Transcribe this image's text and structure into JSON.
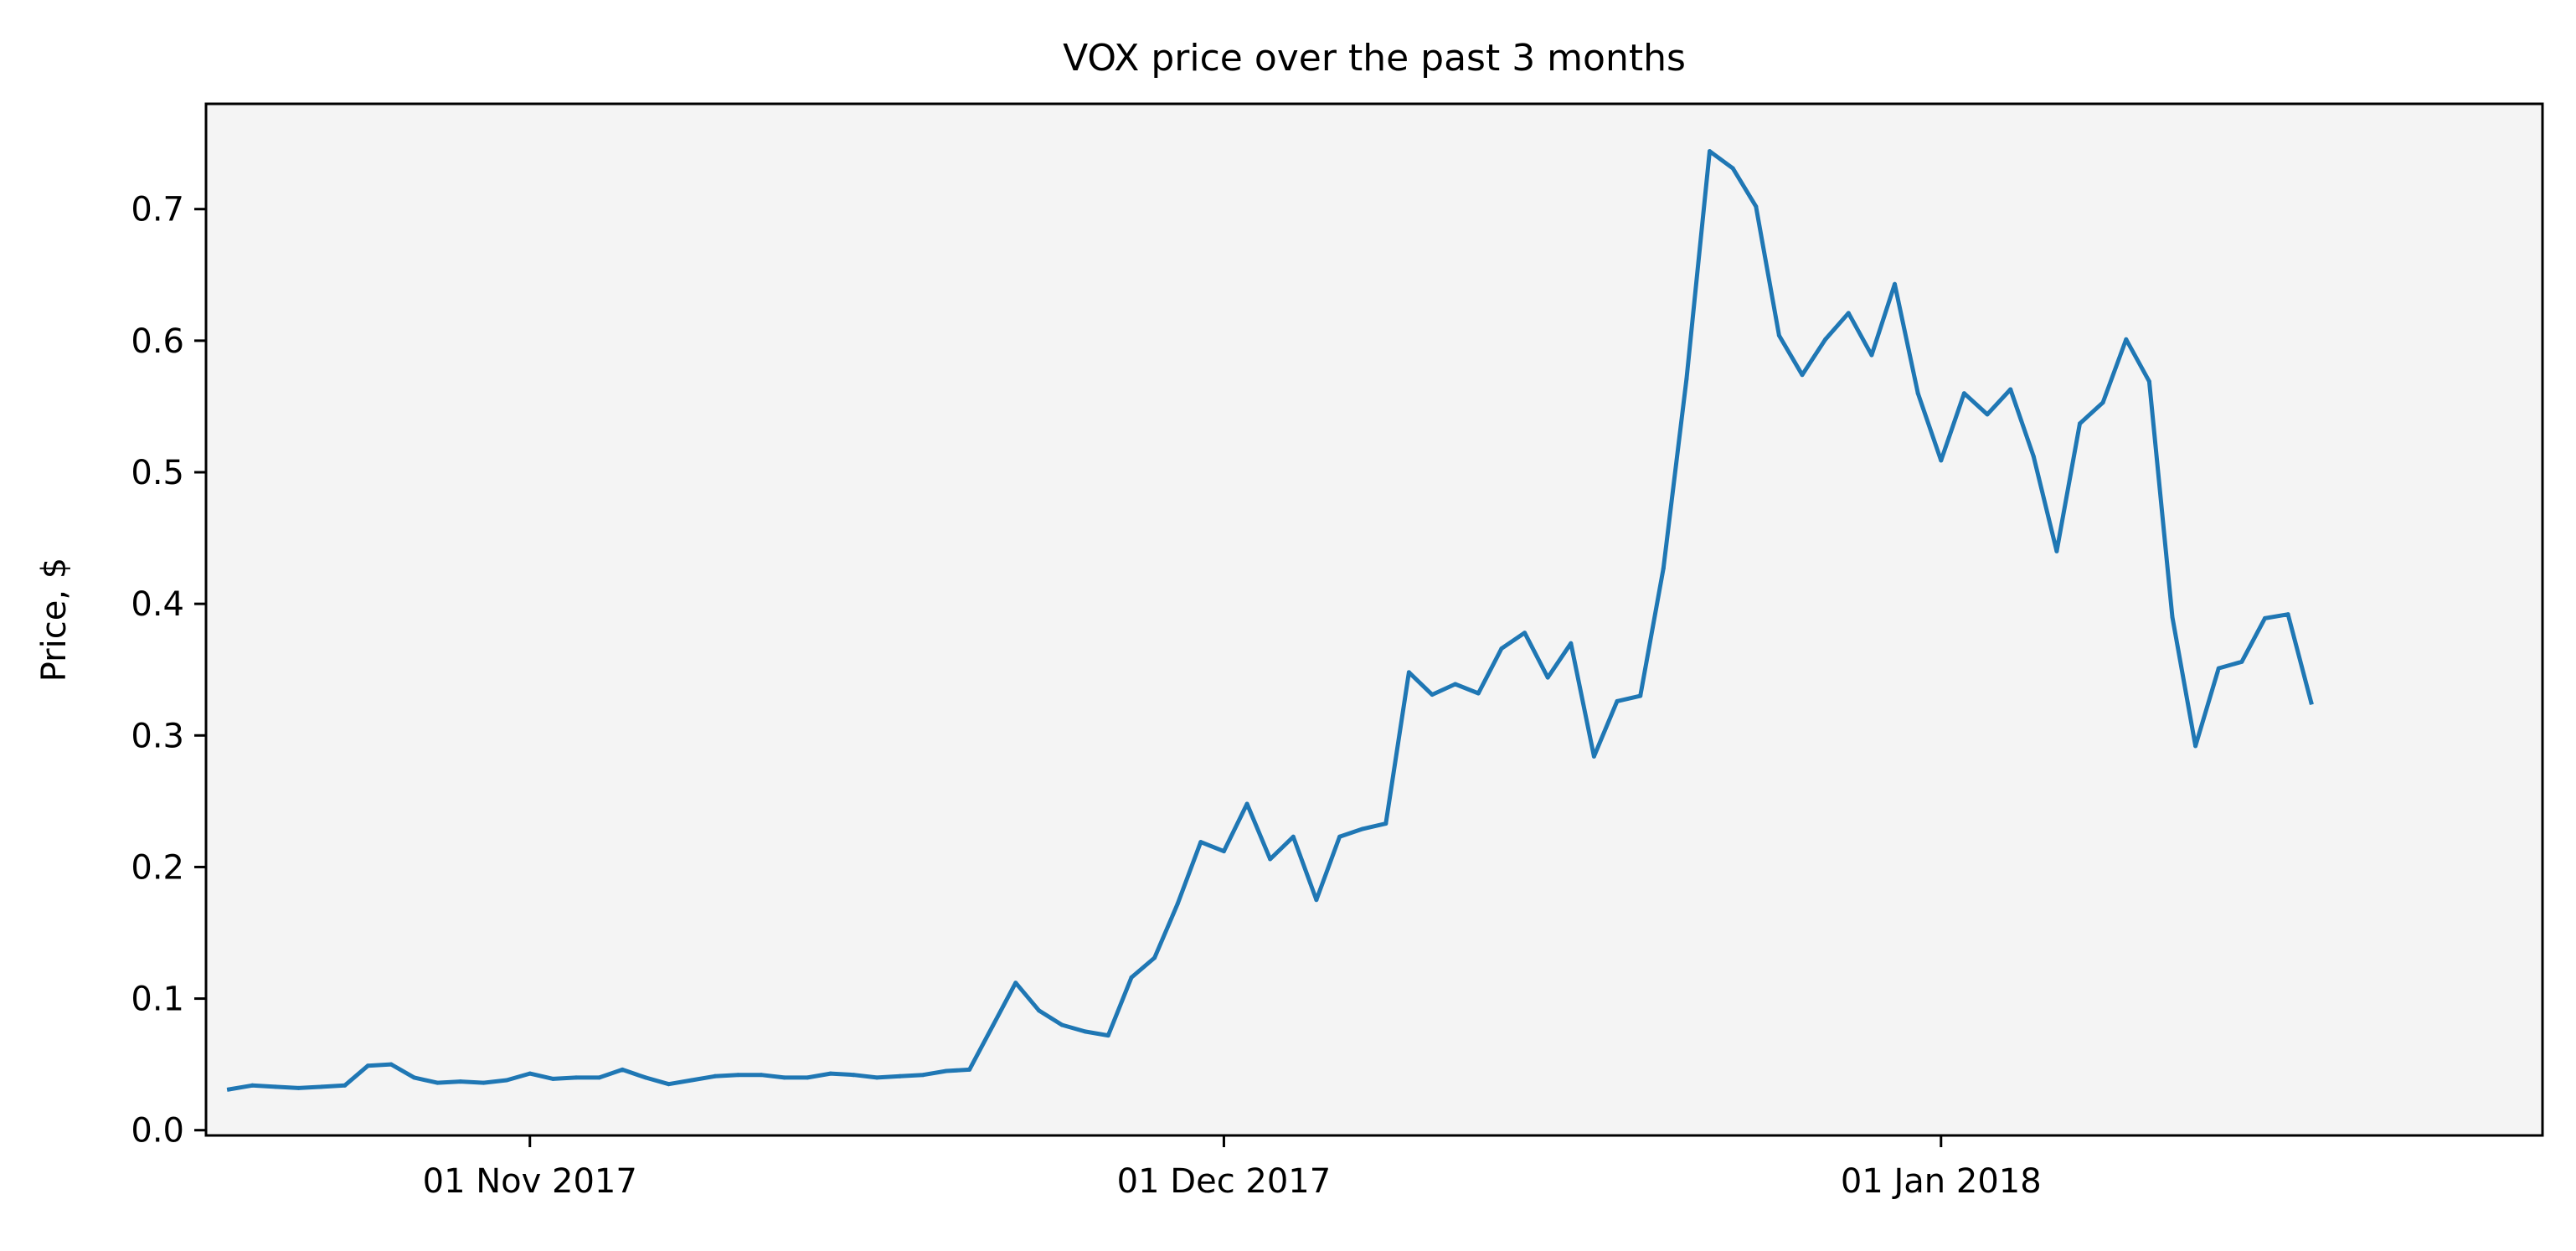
{
  "chart_data": {
    "type": "line",
    "title": "VOX price over the past 3 months",
    "xlabel": "",
    "ylabel": "Price, $",
    "x_tick_labels": [
      "01 Nov 2017",
      "01 Dec 2017",
      "01 Jan 2018"
    ],
    "y_ticks": [
      0.0,
      0.1,
      0.2,
      0.3,
      0.4,
      0.5,
      0.6,
      0.7
    ],
    "y_tick_labels": [
      "0.0",
      "0.1",
      "0.2",
      "0.3",
      "0.4",
      "0.5",
      "0.6",
      "0.7"
    ],
    "xlim": [
      "2017-10-18",
      "2018-01-27"
    ],
    "ylim": [
      -0.004,
      0.78
    ],
    "grid": false,
    "legend": false,
    "series": [
      {
        "color": "#1f77b4",
        "points": [
          [
            "2017-10-19",
            0.031
          ],
          [
            "2017-10-20",
            0.034
          ],
          [
            "2017-10-21",
            0.033
          ],
          [
            "2017-10-22",
            0.032
          ],
          [
            "2017-10-23",
            0.033
          ],
          [
            "2017-10-24",
            0.034
          ],
          [
            "2017-10-25",
            0.049
          ],
          [
            "2017-10-26",
            0.05
          ],
          [
            "2017-10-27",
            0.04
          ],
          [
            "2017-10-28",
            0.036
          ],
          [
            "2017-10-29",
            0.037
          ],
          [
            "2017-10-30",
            0.036
          ],
          [
            "2017-10-31",
            0.038
          ],
          [
            "2017-11-01",
            0.043
          ],
          [
            "2017-11-02",
            0.039
          ],
          [
            "2017-11-03",
            0.04
          ],
          [
            "2017-11-04",
            0.04
          ],
          [
            "2017-11-05",
            0.046
          ],
          [
            "2017-11-06",
            0.04
          ],
          [
            "2017-11-07",
            0.035
          ],
          [
            "2017-11-08",
            0.038
          ],
          [
            "2017-11-09",
            0.041
          ],
          [
            "2017-11-10",
            0.042
          ],
          [
            "2017-11-11",
            0.042
          ],
          [
            "2017-11-12",
            0.04
          ],
          [
            "2017-11-13",
            0.04
          ],
          [
            "2017-11-14",
            0.043
          ],
          [
            "2017-11-15",
            0.042
          ],
          [
            "2017-11-16",
            0.04
          ],
          [
            "2017-11-17",
            0.041
          ],
          [
            "2017-11-18",
            0.042
          ],
          [
            "2017-11-19",
            0.045
          ],
          [
            "2017-11-20",
            0.046
          ],
          [
            "2017-11-21",
            0.079
          ],
          [
            "2017-11-22",
            0.112
          ],
          [
            "2017-11-23",
            0.091
          ],
          [
            "2017-11-24",
            0.08
          ],
          [
            "2017-11-25",
            0.075
          ],
          [
            "2017-11-26",
            0.072
          ],
          [
            "2017-11-27",
            0.116
          ],
          [
            "2017-11-28",
            0.131
          ],
          [
            "2017-11-29",
            0.172
          ],
          [
            "2017-11-30",
            0.219
          ],
          [
            "2017-12-01",
            0.212
          ],
          [
            "2017-12-02",
            0.248
          ],
          [
            "2017-12-03",
            0.206
          ],
          [
            "2017-12-04",
            0.223
          ],
          [
            "2017-12-05",
            0.175
          ],
          [
            "2017-12-06",
            0.223
          ],
          [
            "2017-12-07",
            0.229
          ],
          [
            "2017-12-08",
            0.233
          ],
          [
            "2017-12-09",
            0.348
          ],
          [
            "2017-12-10",
            0.331
          ],
          [
            "2017-12-11",
            0.339
          ],
          [
            "2017-12-12",
            0.332
          ],
          [
            "2017-12-13",
            0.366
          ],
          [
            "2017-12-14",
            0.378
          ],
          [
            "2017-12-15",
            0.344
          ],
          [
            "2017-12-16",
            0.37
          ],
          [
            "2017-12-17",
            0.284
          ],
          [
            "2017-12-18",
            0.326
          ],
          [
            "2017-12-19",
            0.33
          ],
          [
            "2017-12-20",
            0.427
          ],
          [
            "2017-12-21",
            0.571
          ],
          [
            "2017-12-22",
            0.744
          ],
          [
            "2017-12-23",
            0.731
          ],
          [
            "2017-12-24",
            0.702
          ],
          [
            "2017-12-25",
            0.604
          ],
          [
            "2017-12-26",
            0.574
          ],
          [
            "2017-12-27",
            0.601
          ],
          [
            "2017-12-28",
            0.621
          ],
          [
            "2017-12-29",
            0.589
          ],
          [
            "2017-12-30",
            0.643
          ],
          [
            "2017-12-31",
            0.56
          ],
          [
            "2018-01-01",
            0.509
          ],
          [
            "2018-01-02",
            0.56
          ],
          [
            "2018-01-03",
            0.544
          ],
          [
            "2018-01-04",
            0.563
          ],
          [
            "2018-01-05",
            0.512
          ],
          [
            "2018-01-06",
            0.44
          ],
          [
            "2018-01-07",
            0.537
          ],
          [
            "2018-01-08",
            0.553
          ],
          [
            "2018-01-09",
            0.601
          ],
          [
            "2018-01-10",
            0.569
          ],
          [
            "2018-01-11",
            0.39
          ],
          [
            "2018-01-12",
            0.292
          ],
          [
            "2018-01-13",
            0.351
          ],
          [
            "2018-01-14",
            0.356
          ],
          [
            "2018-01-15",
            0.389
          ],
          [
            "2018-01-16",
            0.392
          ],
          [
            "2018-01-17",
            0.325
          ]
        ]
      }
    ],
    "colors": {
      "line": "#1f77b4",
      "plot_background": "#f4f4f4",
      "figure_background": "#ffffff",
      "axes": "#000000"
    }
  }
}
